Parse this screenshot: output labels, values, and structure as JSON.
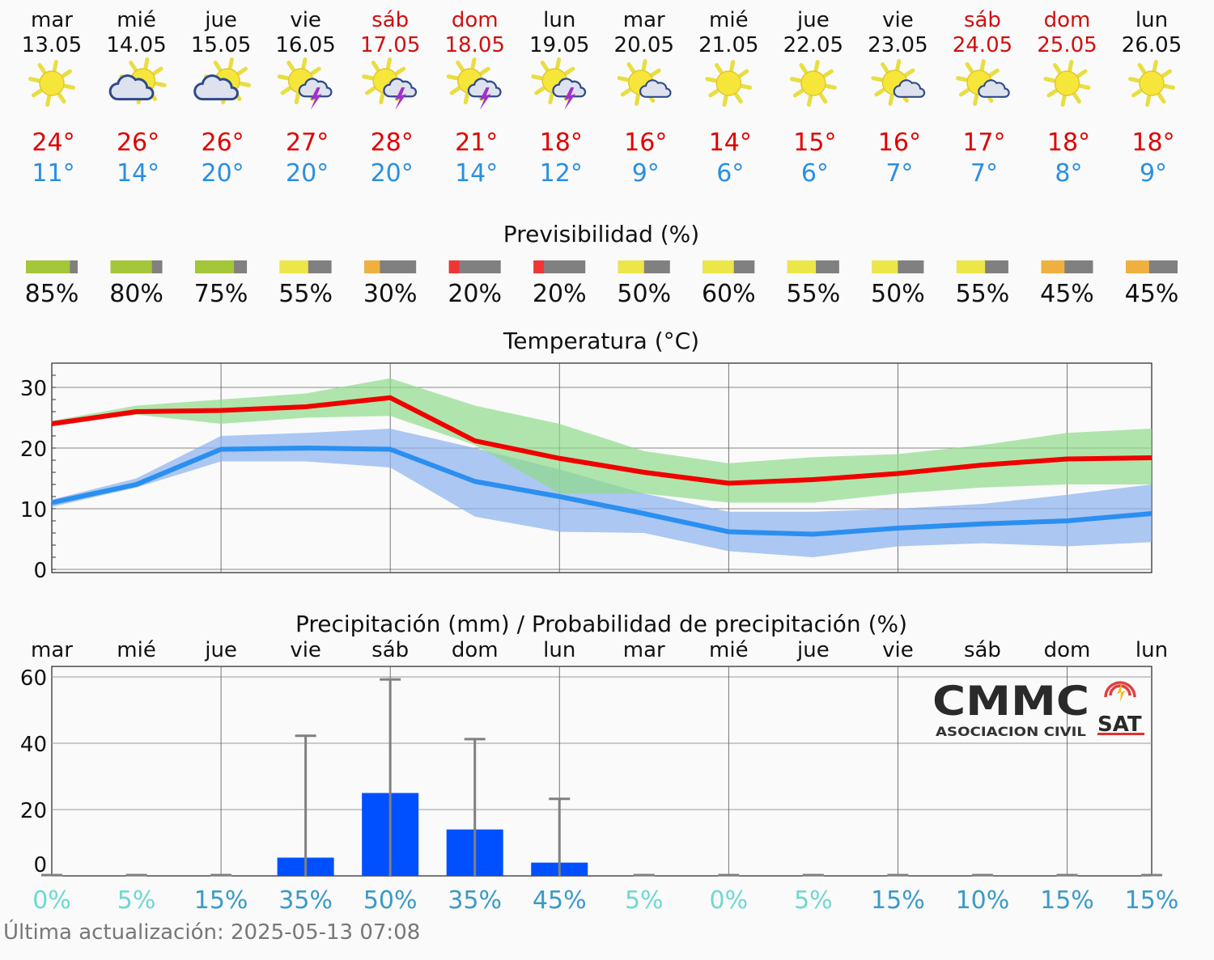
{
  "days": [
    {
      "name": "mar",
      "date": "13.05",
      "weekend": false,
      "icon": "sun",
      "max": "24°",
      "min": "11°",
      "tmax": 24,
      "tmin": 11,
      "predict": 85,
      "predict_label": "85%",
      "precip": 0,
      "precip_max": 0,
      "prob": 0,
      "prob_label": "0%"
    },
    {
      "name": "mié",
      "date": "14.05",
      "weekend": false,
      "icon": "sun-cloud",
      "max": "26°",
      "min": "14°",
      "tmax": 26,
      "tmin": 14,
      "predict": 80,
      "predict_label": "80%",
      "precip": 0,
      "precip_max": 0,
      "prob": 5,
      "prob_label": "5%"
    },
    {
      "name": "jue",
      "date": "15.05",
      "weekend": false,
      "icon": "sun-cloud",
      "max": "26°",
      "min": "20°",
      "tmax": 26.2,
      "tmin": 19.8,
      "predict": 75,
      "predict_label": "75%",
      "precip": 0,
      "precip_max": 0,
      "prob": 15,
      "prob_label": "15%"
    },
    {
      "name": "vie",
      "date": "16.05",
      "weekend": false,
      "icon": "sun-storm",
      "max": "27°",
      "min": "20°",
      "tmax": 26.8,
      "tmin": 20,
      "predict": 55,
      "predict_label": "55%",
      "precip": 5.5,
      "precip_max": 42,
      "prob": 35,
      "prob_label": "35%"
    },
    {
      "name": "sáb",
      "date": "17.05",
      "weekend": true,
      "icon": "sun-storm",
      "max": "28°",
      "min": "20°",
      "tmax": 28.3,
      "tmin": 19.8,
      "predict": 30,
      "predict_label": "30%",
      "precip": 25,
      "precip_max": 59,
      "prob": 50,
      "prob_label": "50%"
    },
    {
      "name": "dom",
      "date": "18.05",
      "weekend": true,
      "icon": "sun-storm",
      "max": "21°",
      "min": "14°",
      "tmax": 21.2,
      "tmin": 14.5,
      "predict": 20,
      "predict_label": "20%",
      "precip": 14,
      "precip_max": 41,
      "prob": 35,
      "prob_label": "35%"
    },
    {
      "name": "lun",
      "date": "19.05",
      "weekend": false,
      "icon": "sun-storm",
      "max": "18°",
      "min": "12°",
      "tmax": 18.3,
      "tmin": 12,
      "predict": 20,
      "predict_label": "20%",
      "precip": 4,
      "precip_max": 23,
      "prob": 45,
      "prob_label": "45%"
    },
    {
      "name": "mar",
      "date": "20.05",
      "weekend": false,
      "icon": "sun-small-cloud",
      "max": "16°",
      "min": "9°",
      "tmax": 16,
      "tmin": 9.2,
      "predict": 50,
      "predict_label": "50%",
      "precip": 0,
      "precip_max": 0,
      "prob": 5,
      "prob_label": "5%"
    },
    {
      "name": "mié",
      "date": "21.05",
      "weekend": false,
      "icon": "sun",
      "max": "14°",
      "min": "6°",
      "tmax": 14.2,
      "tmin": 6.2,
      "predict": 60,
      "predict_label": "60%",
      "precip": 0,
      "precip_max": 0,
      "prob": 0,
      "prob_label": "0%"
    },
    {
      "name": "jue",
      "date": "22.05",
      "weekend": false,
      "icon": "sun",
      "max": "15°",
      "min": "6°",
      "tmax": 14.8,
      "tmin": 5.8,
      "predict": 55,
      "predict_label": "55%",
      "precip": 0,
      "precip_max": 0,
      "prob": 5,
      "prob_label": "5%"
    },
    {
      "name": "vie",
      "date": "23.05",
      "weekend": false,
      "icon": "sun-small-cloud",
      "max": "16°",
      "min": "7°",
      "tmax": 15.8,
      "tmin": 6.8,
      "predict": 50,
      "predict_label": "50%",
      "precip": 0,
      "precip_max": 0,
      "prob": 15,
      "prob_label": "15%"
    },
    {
      "name": "sáb",
      "date": "24.05",
      "weekend": true,
      "icon": "sun-small-cloud",
      "max": "17°",
      "min": "7°",
      "tmax": 17.2,
      "tmin": 7.5,
      "predict": 55,
      "predict_label": "55%",
      "precip": 0,
      "precip_max": 0,
      "prob": 10,
      "prob_label": "10%"
    },
    {
      "name": "dom",
      "date": "25.05",
      "weekend": true,
      "icon": "sun",
      "max": "18°",
      "min": "8°",
      "tmax": 18.2,
      "tmin": 8,
      "predict": 45,
      "predict_label": "45%",
      "precip": 0,
      "precip_max": 0,
      "prob": 15,
      "prob_label": "15%"
    },
    {
      "name": "lun",
      "date": "26.05",
      "weekend": false,
      "icon": "sun",
      "max": "18°",
      "min": "9°",
      "tmax": 18.4,
      "tmin": 9.2,
      "predict": 45,
      "predict_label": "45%",
      "precip": 0,
      "precip_max": 0,
      "prob": 15,
      "prob_label": "15%"
    }
  ],
  "predictability": {
    "title": "Previsibilidad (%)"
  },
  "chart_data": [
    {
      "type": "line",
      "title": "Temperatura (°C)",
      "ylim": [
        0,
        34
      ],
      "yticks": [
        0,
        10,
        20,
        30
      ],
      "ytick_labels": [
        "0",
        "10",
        "20",
        "30"
      ],
      "grid": true,
      "series": [
        {
          "role": "max",
          "color": "#f00000",
          "values": [
            24,
            26,
            26.2,
            26.8,
            28.3,
            21.2,
            18.3,
            16,
            14.2,
            14.8,
            15.8,
            17.2,
            18.2,
            18.4
          ],
          "band_upper": [
            24.5,
            27,
            28,
            29,
            31.5,
            27,
            24,
            19.5,
            17.5,
            18.5,
            19,
            20.5,
            22.5,
            23.2
          ],
          "band_lower": [
            23.8,
            25.5,
            24,
            25,
            25.3,
            20.5,
            12.5,
            12.5,
            11,
            11,
            12.5,
            13.5,
            14,
            14
          ],
          "band_color": "#8fdc8a"
        },
        {
          "role": "min",
          "color": "#2a8ff0",
          "values": [
            11,
            14,
            19.8,
            20,
            19.8,
            14.5,
            12,
            9.2,
            6.2,
            5.8,
            6.8,
            7.5,
            8,
            9.2
          ],
          "band_upper": [
            11.5,
            15,
            22,
            22.5,
            23.2,
            20,
            16.5,
            12.5,
            9.5,
            9.5,
            10,
            10.8,
            12.3,
            14
          ],
          "band_lower": [
            10.3,
            13.5,
            17.8,
            17.8,
            16.8,
            8.7,
            6.2,
            6,
            3,
            2,
            3.8,
            4.3,
            3.8,
            4.5
          ],
          "band_color": "#8ab0ee"
        }
      ]
    },
    {
      "type": "bar",
      "title": "Precipitación (mm) / Probabilidad de precipitación (%)",
      "ylim": [
        0,
        63
      ],
      "yticks": [
        0,
        20,
        40,
        60
      ],
      "ytick_labels": [
        "0",
        "20",
        "40",
        "60"
      ],
      "grid": true,
      "bar_color": "#0050ff",
      "errorbar_color": "#808080"
    }
  ],
  "colors": {
    "weekend": "#d01010",
    "weekday": "#111111",
    "max_temp": "#e00000",
    "min_temp": "#2a8fe0",
    "prob_low": "#6fd8d0",
    "prob_high": "#3a9ac8"
  },
  "logo": {
    "main": "CMMC",
    "sub": "ASOCIACION CIVIL",
    "badge": "SAT"
  },
  "footer": {
    "last_update": "Última actualización: 2025-05-13 07:08"
  }
}
